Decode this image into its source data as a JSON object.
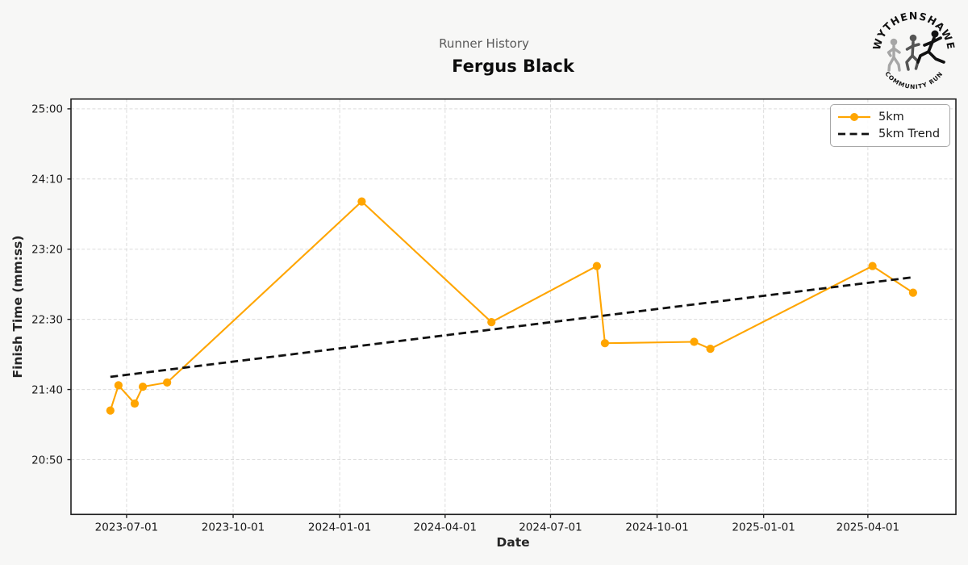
{
  "figure": {
    "suptitle": "Runner History",
    "title": "Fergus Black",
    "background": "#f7f7f6"
  },
  "logo": {
    "arc_top": "WYTHENSHAWE",
    "arc_bottom": "COMMUNITY RUN"
  },
  "legend": {
    "items": [
      {
        "label": "5km",
        "swatch": "orange-line-with-marker"
      },
      {
        "label": "5km Trend",
        "swatch": "black-dashed-line"
      }
    ]
  },
  "chart_data": {
    "type": "line",
    "suptitle": "Runner History",
    "title": "Fergus Black",
    "xlabel": "Date",
    "ylabel": "Finish Time (mm:ss)",
    "grid": true,
    "legend_position": "upper-right",
    "x_range": [
      "2023-05-14",
      "2025-06-16"
    ],
    "y_range_seconds": [
      1211,
      1507
    ],
    "x_tick_labels": [
      "2023-07-01",
      "2023-10-01",
      "2024-01-01",
      "2024-04-01",
      "2024-07-01",
      "2024-10-01",
      "2025-01-01",
      "2025-04-01"
    ],
    "y_tick_labels": [
      "25:00",
      "24:10",
      "23:20",
      "22:30",
      "21:40",
      "20:50"
    ],
    "y_tick_seconds": [
      1500,
      1450,
      1400,
      1350,
      1300,
      1250
    ],
    "colors": {
      "series_5km": "#FFA500",
      "trend": "#111111",
      "grid": "#dcdcdc",
      "spine": "#1f1f1f",
      "tick_text": "#1a1a1a"
    },
    "series": [
      {
        "name": "5km",
        "style": "solid-with-markers",
        "color": "#FFA500",
        "points": [
          [
            "2023-06-17",
            "21:25"
          ],
          [
            "2023-06-24",
            "21:43"
          ],
          [
            "2023-07-08",
            "21:30"
          ],
          [
            "2023-07-15",
            "21:42"
          ],
          [
            "2023-08-05",
            "21:45"
          ],
          [
            "2024-01-20",
            "23:54"
          ],
          [
            "2024-05-11",
            "22:28"
          ],
          [
            "2024-08-10",
            "23:08"
          ],
          [
            "2024-08-17",
            "22:13"
          ],
          [
            "2024-11-02",
            "22:14"
          ],
          [
            "2024-11-16",
            "22:09"
          ],
          [
            "2025-04-05",
            "23:08"
          ],
          [
            "2025-05-10",
            "22:49"
          ]
        ]
      },
      {
        "name": "5km Trend",
        "style": "dashed",
        "color": "#111111",
        "points": [
          [
            "2023-06-17",
            "21:49"
          ],
          [
            "2025-05-10",
            "23:00"
          ]
        ]
      }
    ]
  }
}
